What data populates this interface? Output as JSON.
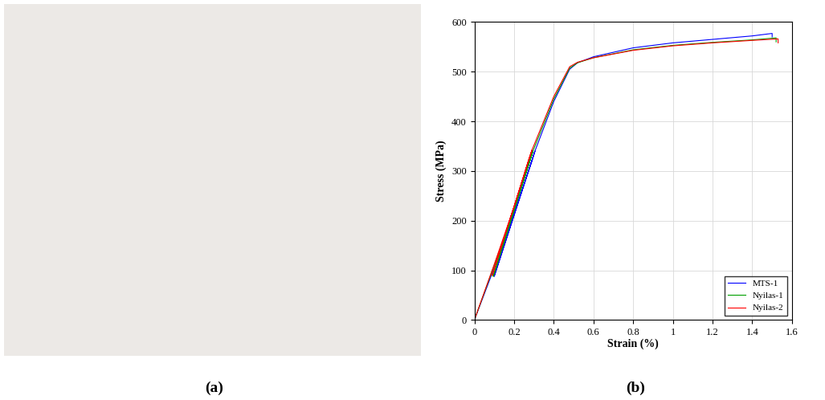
{
  "panel_labels": [
    "(a)",
    "(b)"
  ],
  "chart_data": {
    "type": "line",
    "x_label": "Strain (%)",
    "y_label": "Stress (MPa)",
    "xlim": [
      0,
      1.6
    ],
    "xticks": [
      0,
      0.2,
      0.4,
      0.6,
      0.8,
      1,
      1.2,
      1.4,
      1.6
    ],
    "ylim": [
      0,
      600
    ],
    "yticks": [
      0,
      100,
      200,
      300,
      400,
      500,
      600
    ],
    "grid": true,
    "legend": "lower right",
    "series": [
      {
        "name": "MTS-1",
        "color": "#0000ff",
        "x": [
          0,
          0.1,
          0.2,
          0.29,
          0.305,
          0.1,
          0.305,
          0.4,
          0.48,
          0.52,
          0.6,
          0.8,
          1.0,
          1.2,
          1.4,
          1.5,
          1.5
        ],
        "values": [
          0,
          105,
          215,
          320,
          340,
          88,
          340,
          440,
          505,
          518,
          530,
          548,
          558,
          565,
          572,
          577,
          570
        ]
      },
      {
        "name": "Nyilas-1",
        "color": "#00a000",
        "x": [
          0,
          0.1,
          0.2,
          0.28,
          0.295,
          0.095,
          0.295,
          0.4,
          0.48,
          0.52,
          0.6,
          0.8,
          1.0,
          1.2,
          1.4,
          1.52,
          1.52
        ],
        "values": [
          0,
          110,
          222,
          322,
          340,
          88,
          340,
          445,
          507,
          518,
          528,
          544,
          553,
          559,
          564,
          568,
          560
        ]
      },
      {
        "name": "Nyilas-2",
        "color": "#ff0000",
        "x": [
          0,
          0.1,
          0.2,
          0.275,
          0.29,
          0.09,
          0.29,
          0.4,
          0.48,
          0.52,
          0.6,
          0.8,
          1.0,
          1.2,
          1.4,
          1.53,
          1.53
        ],
        "values": [
          0,
          112,
          228,
          325,
          342,
          90,
          342,
          450,
          510,
          519,
          528,
          543,
          552,
          558,
          563,
          566,
          558
        ]
      }
    ]
  }
}
